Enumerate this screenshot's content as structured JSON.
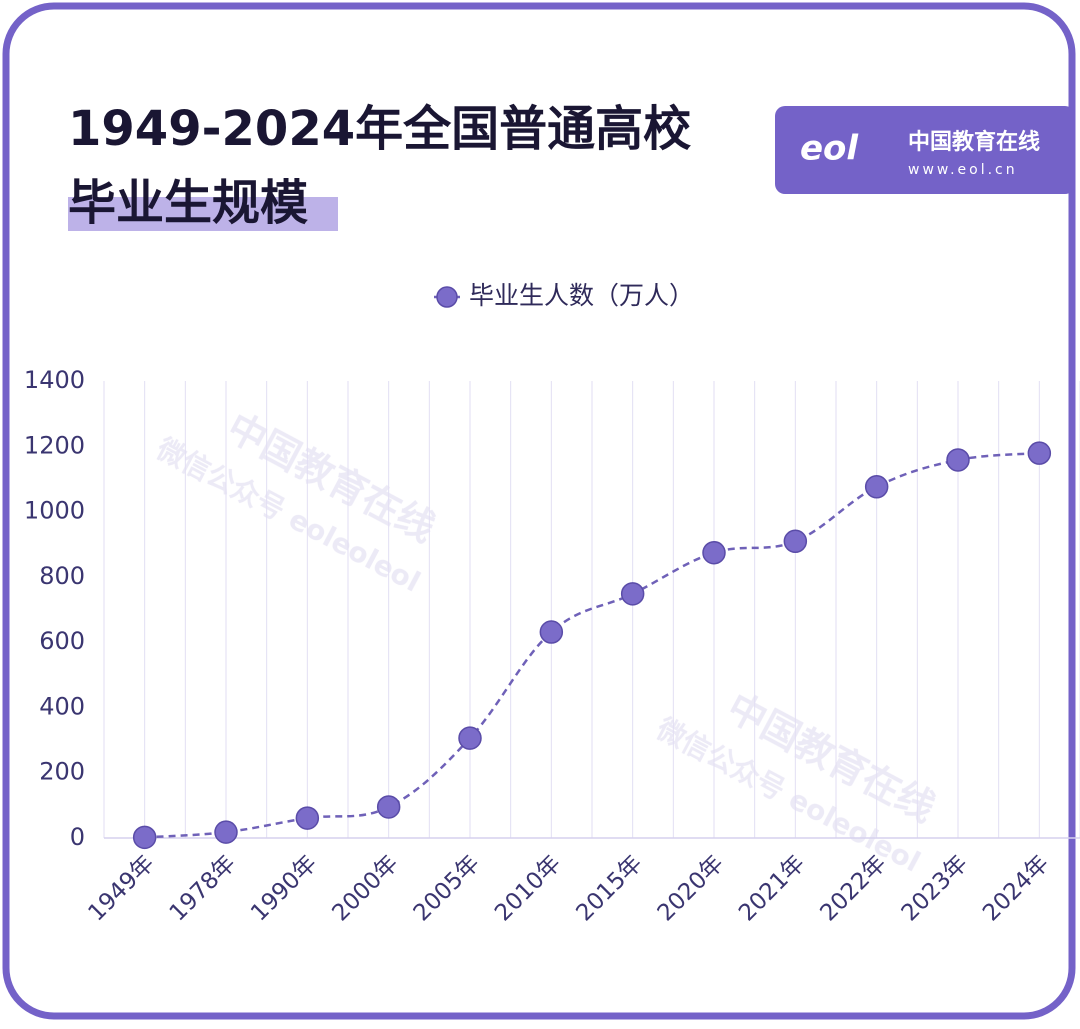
{
  "chart_data": {
    "type": "line",
    "title_lines": [
      "1949-2024年全国普通高校",
      "毕业生规模"
    ],
    "brand": {
      "name": "中国教育在线",
      "url": "www.eol.cn"
    },
    "watermarks": [
      {
        "name": "中国教育在线",
        "sub": "微信公众号 eoleoleol"
      },
      {
        "name": "中国教育在线",
        "sub": "微信公众号 eoleoleol"
      }
    ],
    "categories": [
      "1949年",
      "1978年",
      "1990年",
      "2000年",
      "2005年",
      "2010年",
      "2015年",
      "2020年",
      "2021年",
      "2022年",
      "2023年",
      "2024年"
    ],
    "series": [
      {
        "name": "毕业生人数（万人）",
        "color": "#7b6cc9",
        "values": [
          2,
          18,
          61,
          95,
          306,
          631,
          748,
          874,
          909,
          1076,
          1158,
          1179
        ]
      }
    ],
    "ylim": [
      0,
      1400
    ],
    "yticks": [
      0,
      200,
      400,
      600,
      800,
      1000,
      1200,
      1400
    ],
    "grid": true,
    "legend": "top"
  }
}
